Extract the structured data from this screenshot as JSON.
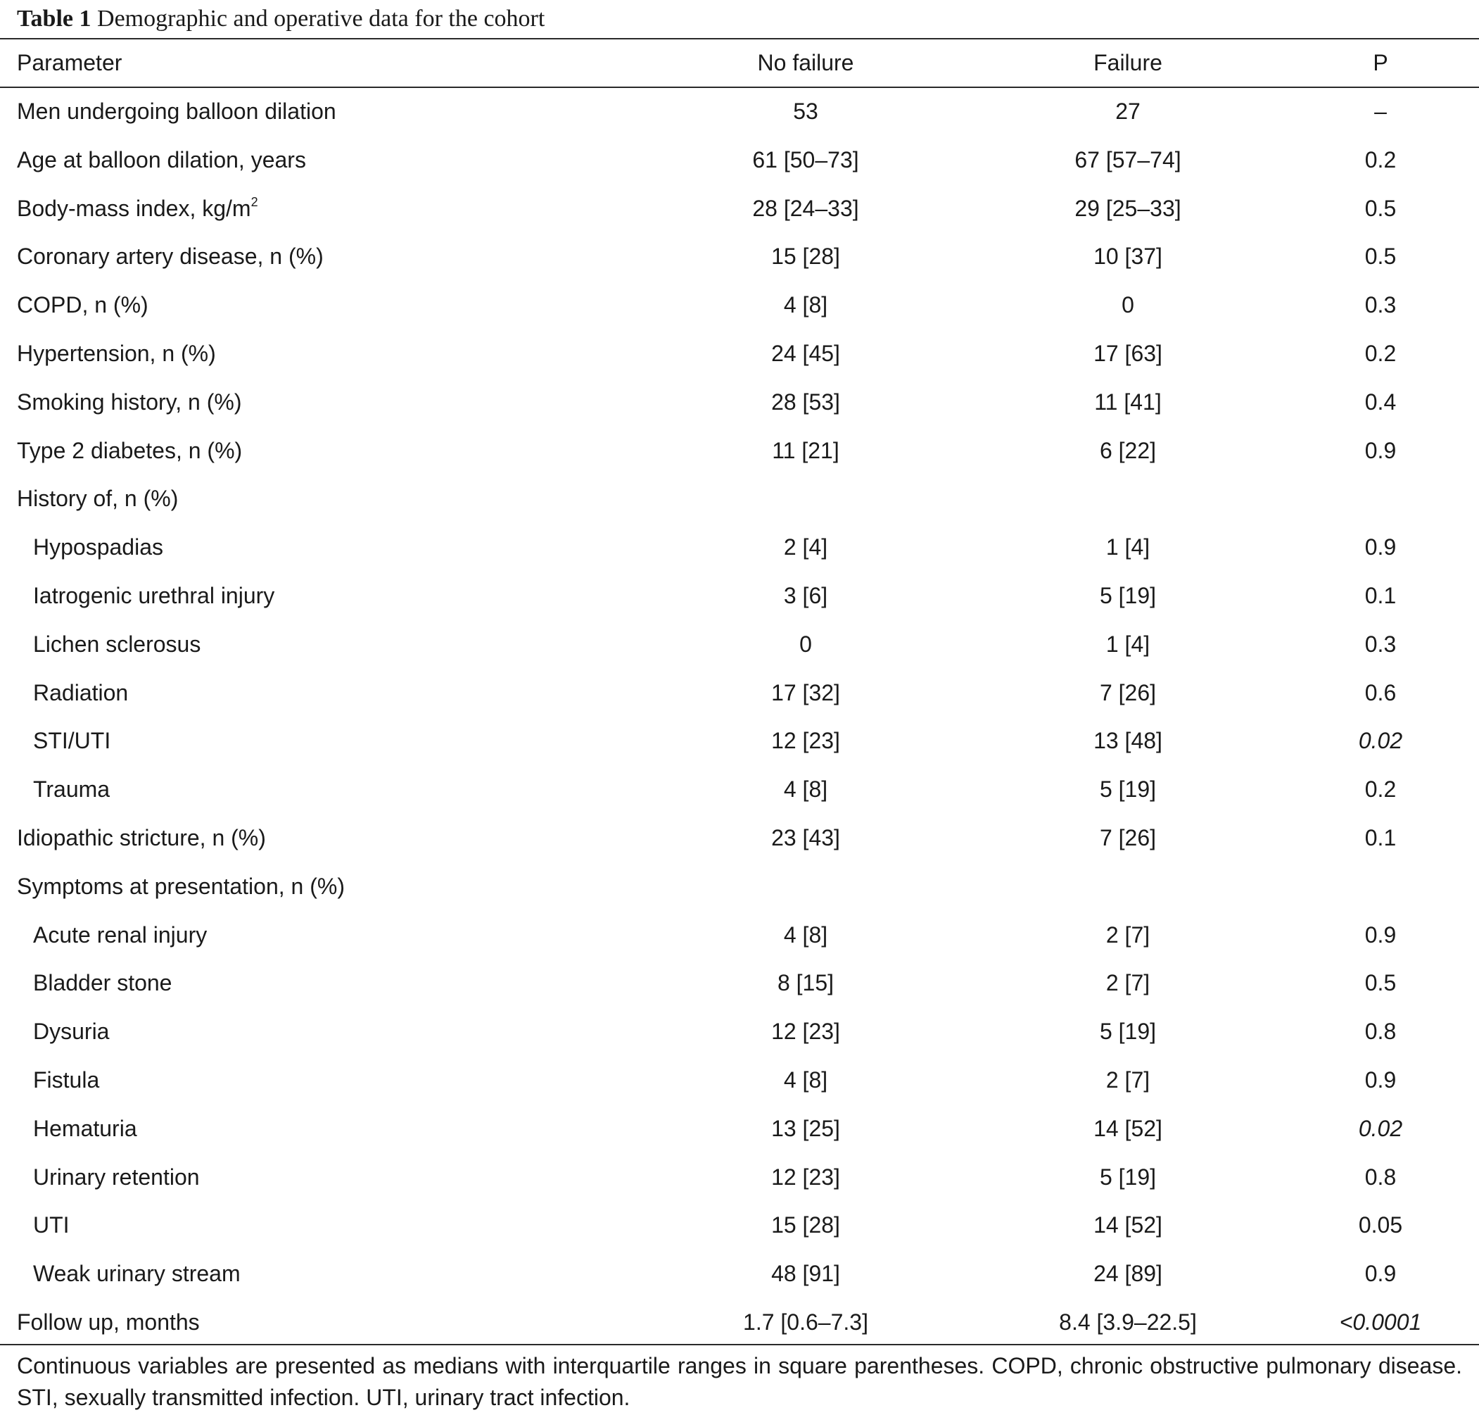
{
  "caption": {
    "label": "Table 1",
    "title": "Demographic and operative data for the cohort"
  },
  "header": {
    "parameter": "Parameter",
    "no_failure": "No failure",
    "failure": "Failure",
    "p": "P"
  },
  "rows": [
    {
      "parameter": "Men undergoing balloon dilation",
      "no_failure": "53",
      "failure": "27",
      "p": "–"
    },
    {
      "parameter": "Age at balloon dilation, years",
      "no_failure": "61 [50–73]",
      "failure": "67 [57–74]",
      "p": "0.2"
    },
    {
      "parameter": "Body-mass index, kg/m",
      "sup": "2",
      "no_failure": "28 [24–33]",
      "failure": "29 [25–33]",
      "p": "0.5"
    },
    {
      "parameter": "Coronary artery disease, n (%)",
      "no_failure": "15 [28]",
      "failure": "10 [37]",
      "p": "0.5"
    },
    {
      "parameter": "COPD, n (%)",
      "no_failure": "4 [8]",
      "failure": "0",
      "p": "0.3"
    },
    {
      "parameter": "Hypertension, n (%)",
      "no_failure": "24 [45]",
      "failure": "17 [63]",
      "p": "0.2"
    },
    {
      "parameter": "Smoking history, n (%)",
      "no_failure": "28 [53]",
      "failure": "11 [41]",
      "p": "0.4"
    },
    {
      "parameter": "Type 2 diabetes, n (%)",
      "no_failure": "11 [21]",
      "failure": "6 [22]",
      "p": "0.9"
    },
    {
      "parameter": "History of, n (%)",
      "no_failure": "",
      "failure": "",
      "p": ""
    },
    {
      "parameter": "Hypospadias",
      "no_failure": "2 [4]",
      "failure": "1 [4]",
      "p": "0.9",
      "indent": true
    },
    {
      "parameter": "Iatrogenic urethral injury",
      "no_failure": "3 [6]",
      "failure": "5 [19]",
      "p": "0.1",
      "indent": true
    },
    {
      "parameter": "Lichen sclerosus",
      "no_failure": "0",
      "failure": "1 [4]",
      "p": "0.3",
      "indent": true
    },
    {
      "parameter": "Radiation",
      "no_failure": "17 [32]",
      "failure": "7 [26]",
      "p": "0.6",
      "indent": true
    },
    {
      "parameter": "STI/UTI",
      "no_failure": "12 [23]",
      "failure": "13 [48]",
      "p": "0.02",
      "indent": true,
      "p_italic": true
    },
    {
      "parameter": "Trauma",
      "no_failure": "4 [8]",
      "failure": "5 [19]",
      "p": "0.2",
      "indent": true
    },
    {
      "parameter": "Idiopathic stricture, n (%)",
      "no_failure": "23 [43]",
      "failure": "7 [26]",
      "p": "0.1"
    },
    {
      "parameter": "Symptoms at presentation, n (%)",
      "no_failure": "",
      "failure": "",
      "p": ""
    },
    {
      "parameter": "Acute renal injury",
      "no_failure": "4 [8]",
      "failure": "2 [7]",
      "p": "0.9",
      "indent": true
    },
    {
      "parameter": "Bladder stone",
      "no_failure": "8 [15]",
      "failure": "2 [7]",
      "p": "0.5",
      "indent": true
    },
    {
      "parameter": "Dysuria",
      "no_failure": "12 [23]",
      "failure": "5 [19]",
      "p": "0.8",
      "indent": true
    },
    {
      "parameter": "Fistula",
      "no_failure": "4 [8]",
      "failure": "2 [7]",
      "p": "0.9",
      "indent": true
    },
    {
      "parameter": "Hematuria",
      "no_failure": "13 [25]",
      "failure": "14 [52]",
      "p": "0.02",
      "indent": true,
      "p_italic": true
    },
    {
      "parameter": "Urinary retention",
      "no_failure": "12 [23]",
      "failure": "5 [19]",
      "p": "0.8",
      "indent": true
    },
    {
      "parameter": "UTI",
      "no_failure": "15 [28]",
      "failure": "14 [52]",
      "p": "0.05",
      "indent": true
    },
    {
      "parameter": "Weak urinary stream",
      "no_failure": "48 [91]",
      "failure": "24 [89]",
      "p": "0.9",
      "indent": true
    },
    {
      "parameter": "Follow up, months",
      "no_failure": "1.7 [0.6–7.3]",
      "failure": "8.4 [3.9–22.5]",
      "p": "<0.0001",
      "p_italic": true
    }
  ],
  "footnote": "Continuous variables are presented as medians with interquartile ranges in square parentheses. COPD, chronic obstructive pulmonary disease. STI, sexually transmitted infection. UTI, urinary tract infection."
}
